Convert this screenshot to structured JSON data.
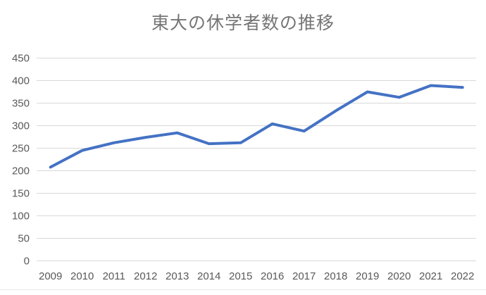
{
  "chart_data": {
    "type": "line",
    "title": "東大の休学者数の推移",
    "x": [
      2009,
      2010,
      2011,
      2012,
      2013,
      2014,
      2015,
      2016,
      2017,
      2018,
      2019,
      2020,
      2021,
      2022
    ],
    "values": [
      208,
      245,
      262,
      274,
      284,
      260,
      262,
      304,
      288,
      333,
      375,
      363,
      389,
      385
    ],
    "xlabel": "",
    "ylabel": "",
    "ylim": [
      0,
      450
    ],
    "yticks": [
      0,
      50,
      100,
      150,
      200,
      250,
      300,
      350,
      400,
      450
    ],
    "grid": true,
    "legend": false,
    "colors": {
      "line": "#4472C4",
      "grid": "#D9D9D9",
      "axis_text": "#595959",
      "title_text": "#757575",
      "background": "#ffffff"
    }
  }
}
